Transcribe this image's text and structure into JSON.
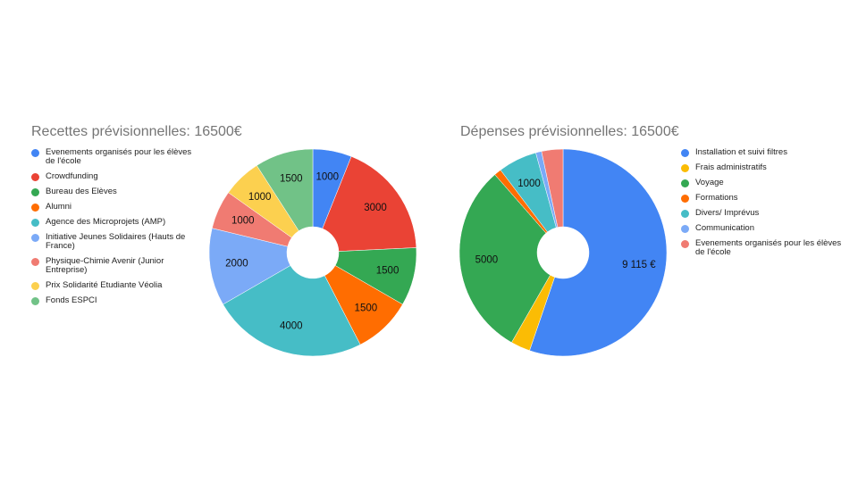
{
  "chart_data": [
    {
      "type": "donut",
      "title": "Recettes prévisionnelles: 16500€",
      "categories": [
        "Evenements organisés pour les élèves de l'école",
        "Crowdfunding",
        "Bureau des Elèves",
        "Alumni",
        "Agence des Microprojets (AMP)",
        "Initiative Jeunes Solidaires (Hauts de France)",
        "Physique-Chimie Avenir (Junior Entreprise)",
        "Prix Solidarité Etudiante Véolia",
        "Fonds ESPCI"
      ],
      "values": [
        1000,
        3000,
        1500,
        1500,
        4000,
        2000,
        1000,
        1000,
        1500
      ],
      "colors": [
        "#4285f4",
        "#ea4335",
        "#34a853",
        "#ff6d01",
        "#46bdc6",
        "#7baaf7",
        "#f07b72",
        "#fcd04f",
        "#71c287"
      ],
      "legend": "left"
    },
    {
      "type": "donut",
      "title": "Dépenses prévisionnelles: 16500€",
      "categories": [
        "Installation et suivi filtres",
        "Frais administratifs",
        "Voyage",
        "Formations",
        "Divers/ Imprévus",
        "Communication",
        "Evenements organisés pour les élèves de l'école"
      ],
      "values": [
        9115,
        500,
        5000,
        185,
        1000,
        150,
        550
      ],
      "value_labels": [
        "9 115 €",
        null,
        "5000",
        null,
        "1000",
        null,
        null
      ],
      "colors": [
        "#4285f4",
        "#fbbc04",
        "#34a853",
        "#ff6d01",
        "#46bdc6",
        "#7baaf7",
        "#f07b72"
      ],
      "legend": "right"
    }
  ]
}
